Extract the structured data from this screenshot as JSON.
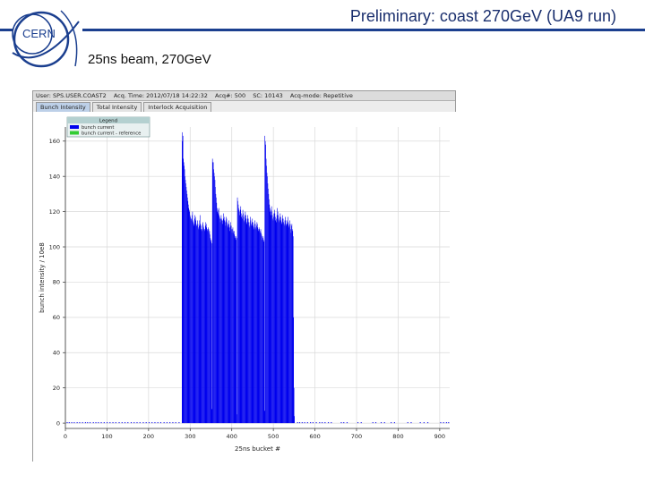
{
  "header": {
    "title": "Preliminary: coast 270GeV (UA9 run)",
    "subtitle": "25ns beam,  270GeV",
    "logo_text": "CERN"
  },
  "app": {
    "status": {
      "user": "User: SPS.USER.COAST2",
      "acq_time": "Acq. Time: 2012/07/18 14:22:32",
      "acq": "Acq#: 500",
      "sc": "SC: 10143",
      "acq_mode": "Acq-mode: Repetitive"
    },
    "tabs": [
      "Bunch Intensity",
      "Total Intensity",
      "Interlock Acquisition"
    ],
    "active_tab": 0
  },
  "colors": {
    "bars": "#0000ee",
    "reference": "#33cc33",
    "brand": "#1b3f8f"
  },
  "chart_data": {
    "type": "bar",
    "xlabel": "25ns bucket #",
    "ylabel": "bunch intensity / 10e8",
    "xlim": [
      0,
      924
    ],
    "ylim": [
      -3,
      168
    ],
    "xticks": [
      0,
      100,
      200,
      300,
      400,
      500,
      600,
      700,
      800,
      900
    ],
    "yticks": [
      0,
      20,
      40,
      60,
      80,
      100,
      120,
      140,
      160
    ],
    "grid": true,
    "legend": {
      "title": "Legend",
      "position": "top-left",
      "entries": [
        {
          "label": "bunch current",
          "color": "#0000ee"
        },
        {
          "label": "bunch current - reference",
          "color": "#33cc33"
        }
      ]
    },
    "trains": [
      {
        "start": 280,
        "end": 352,
        "values": [
          165,
          160,
          163,
          150,
          148,
          146,
          144,
          140,
          138,
          136,
          134,
          132,
          130,
          128,
          126,
          124,
          122,
          121,
          120,
          118,
          117,
          116,
          115,
          116,
          118,
          120,
          115,
          114,
          113,
          112,
          116,
          118,
          117,
          115,
          113,
          112,
          112,
          115,
          113,
          111,
          110,
          112,
          115,
          118,
          113,
          112,
          110,
          109,
          110,
          113,
          114,
          112,
          111,
          110,
          109,
          110,
          112,
          114,
          113,
          111,
          110,
          109,
          110,
          111,
          110,
          108,
          109,
          107,
          105,
          103,
          104,
          102,
          8
        ]
      },
      {
        "start": 353,
        "end": 412,
        "values": [
          150,
          148,
          148,
          144,
          142,
          140,
          138,
          134,
          130,
          128,
          125,
          122,
          120,
          119,
          121,
          122,
          118,
          117,
          116,
          114,
          116,
          118,
          116,
          115,
          113,
          115,
          116,
          119,
          117,
          115,
          114,
          112,
          115,
          117,
          116,
          114,
          112,
          111,
          113,
          115,
          113,
          111,
          109,
          112,
          114,
          112,
          110,
          108,
          110,
          111,
          109,
          108,
          109,
          107,
          106,
          105,
          104,
          106,
          105,
          5
        ]
      },
      {
        "start": 413,
        "end": 478,
        "values": [
          128,
          126,
          124,
          122,
          121,
          120,
          118,
          121,
          123,
          119,
          117,
          116,
          118,
          121,
          119,
          117,
          115,
          114,
          118,
          120,
          118,
          116,
          114,
          113,
          116,
          118,
          116,
          114,
          112,
          111,
          114,
          117,
          115,
          113,
          112,
          114,
          116,
          114,
          112,
          110,
          111,
          113,
          115,
          113,
          111,
          110,
          112,
          114,
          113,
          111,
          110,
          109,
          111,
          110,
          108,
          109,
          110,
          108,
          107,
          106,
          104,
          105,
          106,
          104,
          103,
          7
        ]
      },
      {
        "start": 479,
        "end": 550,
        "values": [
          163,
          160,
          158,
          150,
          146,
          142,
          140,
          136,
          133,
          130,
          127,
          124,
          122,
          120,
          118,
          121,
          123,
          120,
          118,
          116,
          115,
          117,
          119,
          121,
          119,
          117,
          115,
          114,
          116,
          118,
          122,
          120,
          118,
          116,
          114,
          115,
          117,
          119,
          117,
          115,
          113,
          114,
          116,
          118,
          116,
          114,
          113,
          112,
          115,
          117,
          115,
          113,
          112,
          113,
          115,
          117,
          114,
          112,
          111,
          113,
          115,
          113,
          110,
          108,
          112,
          113,
          110,
          109,
          106,
          60,
          20,
          4
        ]
      }
    ],
    "stray_buckets": [
      3,
      8,
      14,
      20,
      27,
      33,
      40,
      47,
      52,
      58,
      66,
      72,
      78,
      85,
      92,
      99,
      106,
      113,
      120,
      128,
      135,
      142,
      149,
      157,
      164,
      171,
      178,
      186,
      193,
      200,
      207,
      214,
      221,
      228,
      236,
      243,
      250,
      257,
      264,
      272,
      557,
      562,
      568,
      574,
      581,
      588,
      594,
      602,
      610,
      616,
      623,
      631,
      638,
      662,
      668,
      676,
      702,
      710,
      738,
      745,
      758,
      766,
      782,
      790,
      822,
      830,
      852,
      861,
      870,
      901,
      908,
      915,
      920
    ],
    "stray_value": 0.5
  }
}
